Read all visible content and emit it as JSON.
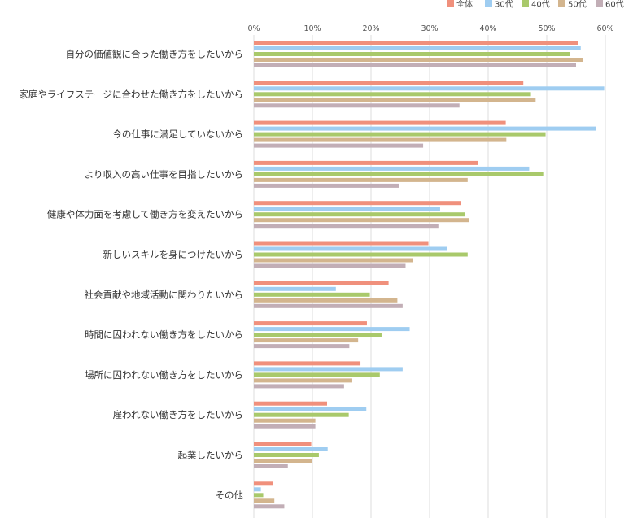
{
  "chart_data": {
    "type": "bar",
    "orientation": "horizontal",
    "x_unit": "%",
    "xlim": [
      0,
      60
    ],
    "x_ticks": [
      0,
      10,
      20,
      30,
      40,
      50,
      60
    ],
    "tick_format": "{v}%",
    "grid": true,
    "legend_position": "top-right",
    "categories": [
      "自分の価値観に合った働き方をしたいから",
      "家庭やライフステージに合わせた働き方をしたいから",
      "今の仕事に満足していないから",
      "より収入の高い仕事を目指したいから",
      "健康や体力面を考慮して働き方を変えたいから",
      "新しいスキルを身につけたいから",
      "社会貢献や地域活動に関わりたいから",
      "時間に囚われない働き方をしたいから",
      "場所に囚われない働き方をしたいから",
      "雇われない働き方をしたいから",
      "起業したいから",
      "その他"
    ],
    "series": [
      {
        "name": "全体",
        "color": "#f0907c",
        "values": [
          55.4,
          46.0,
          43.0,
          38.2,
          35.3,
          29.8,
          23.0,
          19.3,
          18.2,
          12.5,
          9.8,
          3.2
        ]
      },
      {
        "name": "30代",
        "color": "#9fcdf1",
        "values": [
          55.8,
          59.8,
          58.4,
          47.0,
          31.8,
          33.0,
          14.0,
          26.6,
          25.4,
          19.2,
          12.6,
          1.2
        ]
      },
      {
        "name": "40代",
        "color": "#a9c96b",
        "values": [
          53.9,
          47.3,
          49.8,
          49.4,
          36.1,
          36.5,
          19.8,
          21.8,
          21.5,
          16.2,
          11.1,
          1.6
        ]
      },
      {
        "name": "50代",
        "color": "#d3b58e",
        "values": [
          56.2,
          48.1,
          43.1,
          36.5,
          36.8,
          27.1,
          24.5,
          17.8,
          16.8,
          10.5,
          10.0,
          3.5
        ]
      },
      {
        "name": "60代",
        "color": "#c2aeb6",
        "values": [
          55.0,
          35.1,
          28.9,
          24.8,
          31.5,
          25.9,
          25.4,
          16.3,
          15.4,
          10.5,
          5.8,
          5.2
        ]
      }
    ]
  }
}
